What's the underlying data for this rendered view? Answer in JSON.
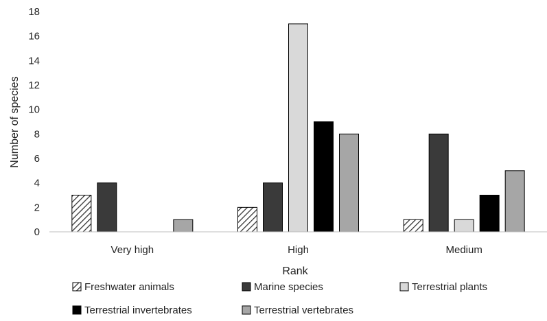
{
  "chart_data": {
    "type": "bar",
    "title": "",
    "xlabel": "Rank",
    "ylabel": "Number of species",
    "categories": [
      "Very high",
      "High",
      "Medium"
    ],
    "ylim": [
      0,
      18
    ],
    "yticks": [
      0,
      2,
      4,
      6,
      8,
      10,
      12,
      14,
      16,
      18
    ],
    "grid": false,
    "legend_position": "bottom",
    "series": [
      {
        "name": "Freshwater animals",
        "values": [
          3,
          2,
          1
        ],
        "color": "#ffffff",
        "pattern": "diagonal-hatch"
      },
      {
        "name": "Marine species",
        "values": [
          4,
          4,
          8
        ],
        "color": "#3a3a3a"
      },
      {
        "name": "Terrestrial plants",
        "values": [
          0,
          17,
          1
        ],
        "color": "#d9d9d9"
      },
      {
        "name": "Terrestrial invertebrates",
        "values": [
          0,
          9,
          3
        ],
        "color": "#000000"
      },
      {
        "name": "Terrestrial vertebrates",
        "values": [
          1,
          8,
          5
        ],
        "color": "#a6a6a6"
      }
    ]
  }
}
